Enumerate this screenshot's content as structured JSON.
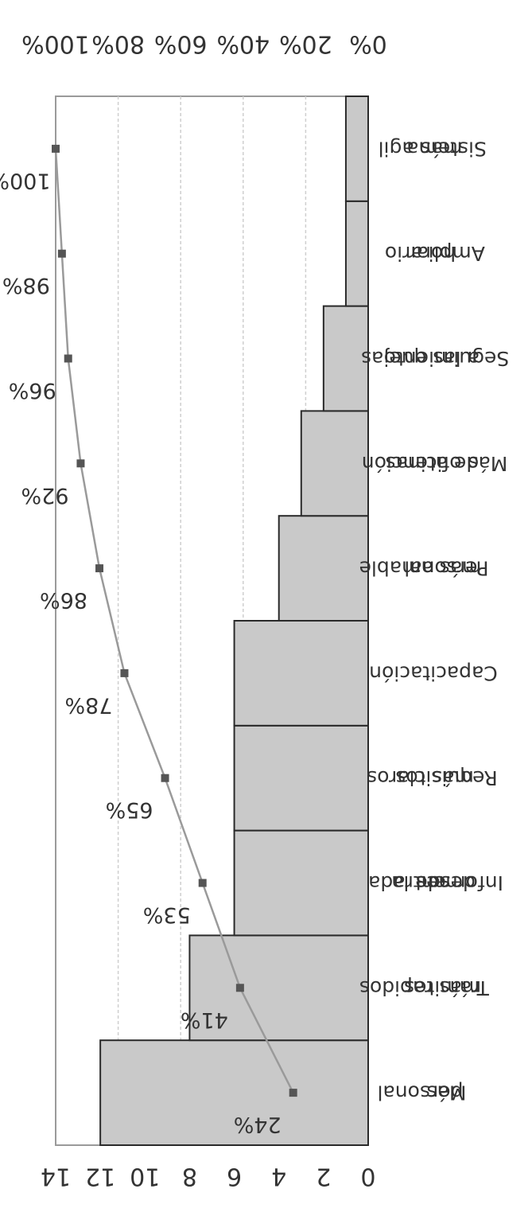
{
  "chart_data": {
    "type": "bar",
    "orientation": "rotated-180",
    "categories": [
      [
        "Más",
        "personal"
      ],
      [
        "Trámites",
        "más rapidos"
      ],
      [
        "Informes",
        "desde la",
        "entrada"
      ],
      [
        "Requisitos",
        "más claros"
      ],
      [
        "Capacitación"
      ],
      [
        "Personal",
        "más amable"
      ],
      [
        "Más oficinas",
        "de atención"
      ],
      [
        "Seguimiento",
        "a las quejas"
      ],
      [
        "Ampliar",
        "horario"
      ],
      [
        "Sistema",
        "más agil"
      ]
    ],
    "series": [
      {
        "values": [
          12,
          8,
          6,
          6,
          6,
          4,
          3,
          2,
          1,
          1
        ]
      },
      {
        "values": [
          24,
          41,
          53,
          65,
          78,
          86,
          92,
          96,
          98,
          100
        ]
      }
    ],
    "cumulative_labels": [
      "24%",
      "41%",
      "53%",
      "65%",
      "78%",
      "86%",
      "92%",
      "96%",
      "98%",
      "100%"
    ],
    "left_axis": {
      "ticks": [
        "0",
        "2",
        "4",
        "6",
        "8",
        "10",
        "12",
        "14"
      ],
      "lim": [
        0,
        14
      ]
    },
    "right_axis": {
      "ticks": [
        "0%",
        "20%",
        "40%",
        "60%",
        "80%",
        "100%"
      ],
      "lim": [
        0,
        100
      ]
    },
    "colors": {
      "bar_fill": "#c9c9c9",
      "bar_edge": "#2a2a2a",
      "line": "#9a9a9a",
      "marker": "#555555",
      "grid": "#cfcfcf"
    }
  }
}
